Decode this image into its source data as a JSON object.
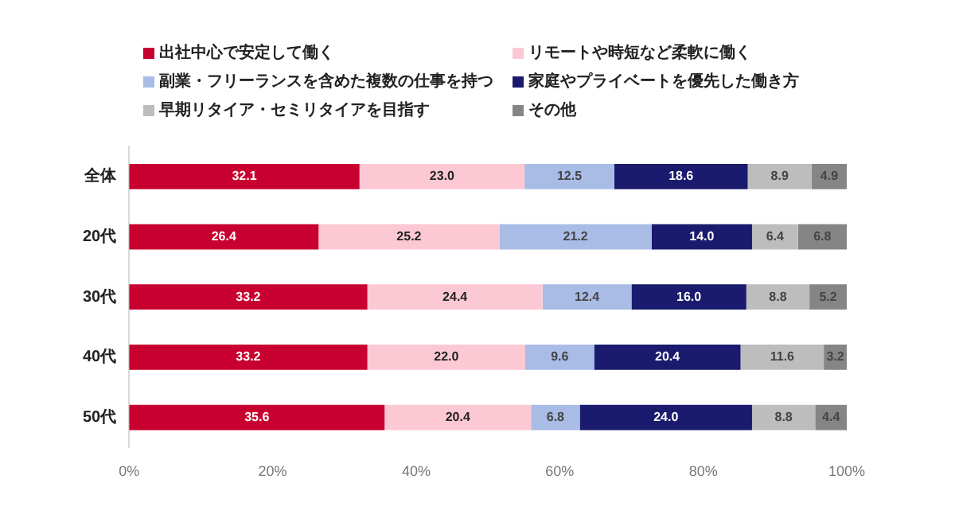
{
  "chart_data": {
    "type": "bar",
    "orientation": "horizontal",
    "stacked": true,
    "categories": [
      "全体",
      "20代",
      "30代",
      "40代",
      "50代"
    ],
    "series": [
      {
        "name": "出社中心で安定して働く",
        "color": "#c8002f",
        "values": [
          32.1,
          26.4,
          33.2,
          33.2,
          35.6
        ],
        "value_labels": [
          "32.1",
          "26.4",
          "33.2",
          "33.2",
          "35.6"
        ]
      },
      {
        "name": "リモートや時短など柔軟に働く",
        "color": "#fcc8d4",
        "values": [
          23.0,
          25.2,
          24.4,
          22.0,
          20.4
        ],
        "value_labels": [
          "23.0",
          "25.2",
          "24.4",
          "22.0",
          "20.4"
        ]
      },
      {
        "name": "副業・フリーランスを含めた複数の仕事を持つ",
        "color": "#a9bce6",
        "values": [
          12.5,
          21.2,
          12.4,
          9.6,
          6.8
        ],
        "value_labels": [
          "12.5",
          "21.2",
          "12.4",
          "9.6",
          "6.8"
        ]
      },
      {
        "name": "家庭やプライベートを優先した働き方",
        "color": "#1a1a6e",
        "values": [
          18.6,
          14.0,
          16.0,
          20.4,
          24.0
        ],
        "value_labels": [
          "18.6",
          "14.0",
          "16.0",
          "20.4",
          "24.0"
        ]
      },
      {
        "name": "早期リタイア・セミリタイアを目指す",
        "color": "#bdbdbd",
        "values": [
          8.9,
          6.4,
          8.8,
          11.6,
          8.8
        ],
        "value_labels": [
          "8.9",
          "6.4",
          "8.8",
          "11.6",
          "8.8"
        ]
      },
      {
        "name": "その他",
        "color": "#858585",
        "values": [
          4.9,
          6.8,
          5.2,
          3.2,
          4.4
        ],
        "value_labels": [
          "4.9",
          "6.8",
          "5.2",
          "3.2",
          "4.4"
        ]
      }
    ],
    "xlim": [
      0,
      100
    ],
    "xticks": [
      {
        "value": 0,
        "label": "0%"
      },
      {
        "value": 20,
        "label": "20%"
      },
      {
        "value": 40,
        "label": "40%"
      },
      {
        "value": 60,
        "label": "60%"
      },
      {
        "value": 80,
        "label": "80%"
      },
      {
        "value": 100,
        "label": "100%"
      }
    ],
    "grid": false,
    "legend": "top"
  }
}
